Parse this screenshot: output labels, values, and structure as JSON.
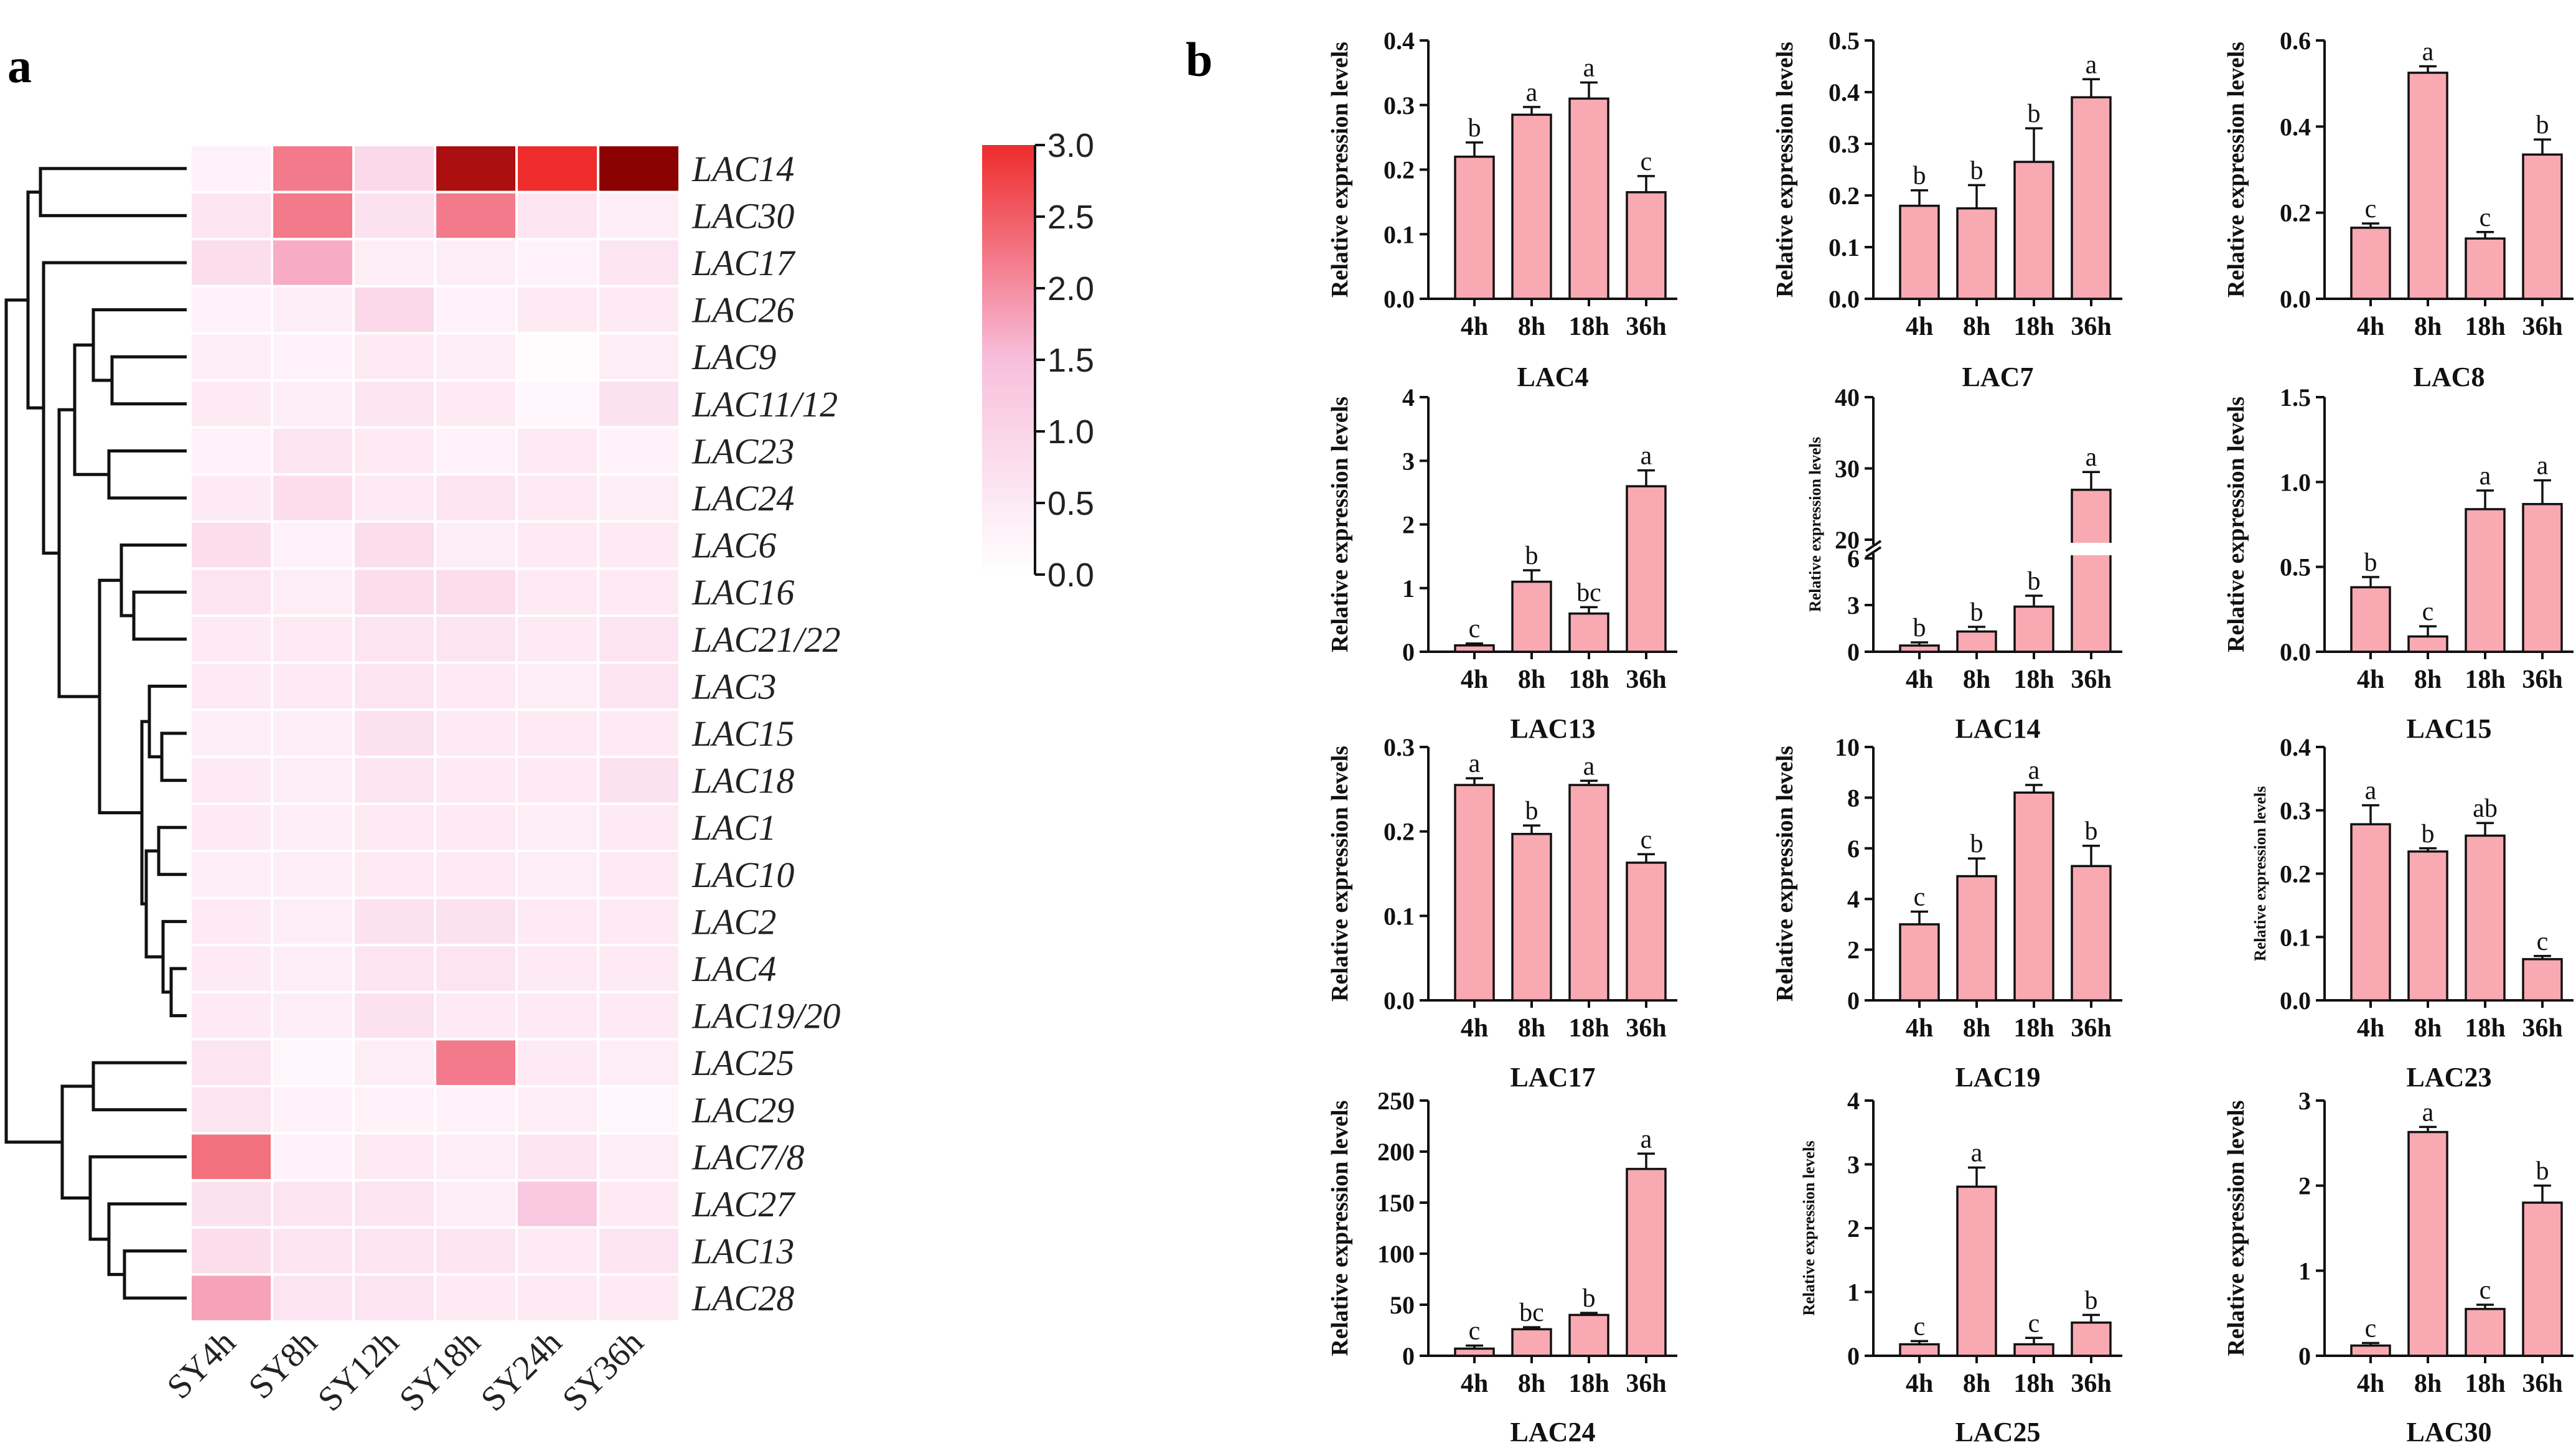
{
  "panels": {
    "a": "a",
    "b": "b"
  },
  "heatmap": {
    "genes": [
      "LAC14",
      "LAC30",
      "LAC17",
      "LAC26",
      "LAC9",
      "LAC11/12",
      "LAC23",
      "LAC24",
      "LAC6",
      "LAC16",
      "LAC21/22",
      "LAC3",
      "LAC15",
      "LAC18",
      "LAC1",
      "LAC10",
      "LAC2",
      "LAC4",
      "LAC19/20",
      "LAC25",
      "LAC29",
      "LAC7/8",
      "LAC27",
      "LAC13",
      "LAC28"
    ],
    "columns": [
      "SY4h",
      "SY8h",
      "SY12h",
      "SY18h",
      "SY24h",
      "SY36h"
    ],
    "values": [
      [
        0.3,
        2.2,
        0.9,
        3.2,
        3.0,
        3.3
      ],
      [
        0.6,
        2.2,
        0.7,
        2.2,
        0.6,
        0.4
      ],
      [
        0.8,
        1.7,
        0.4,
        0.4,
        0.3,
        0.6
      ],
      [
        0.3,
        0.4,
        0.9,
        0.3,
        0.5,
        0.5
      ],
      [
        0.4,
        0.3,
        0.5,
        0.4,
        0.1,
        0.4
      ],
      [
        0.5,
        0.4,
        0.6,
        0.5,
        0.2,
        0.7
      ],
      [
        0.3,
        0.6,
        0.5,
        0.3,
        0.5,
        0.3
      ],
      [
        0.5,
        0.8,
        0.5,
        0.6,
        0.5,
        0.4
      ],
      [
        0.8,
        0.3,
        0.8,
        0.4,
        0.5,
        0.5
      ],
      [
        0.6,
        0.4,
        0.8,
        0.8,
        0.5,
        0.5
      ],
      [
        0.5,
        0.5,
        0.6,
        0.6,
        0.5,
        0.6
      ],
      [
        0.5,
        0.5,
        0.6,
        0.5,
        0.4,
        0.6
      ],
      [
        0.4,
        0.4,
        0.7,
        0.5,
        0.5,
        0.5
      ],
      [
        0.5,
        0.4,
        0.6,
        0.5,
        0.5,
        0.7
      ],
      [
        0.5,
        0.4,
        0.5,
        0.5,
        0.4,
        0.5
      ],
      [
        0.4,
        0.4,
        0.5,
        0.5,
        0.4,
        0.5
      ],
      [
        0.5,
        0.4,
        0.7,
        0.7,
        0.5,
        0.5
      ],
      [
        0.5,
        0.4,
        0.6,
        0.6,
        0.5,
        0.5
      ],
      [
        0.5,
        0.4,
        0.7,
        0.5,
        0.5,
        0.5
      ],
      [
        0.6,
        0.2,
        0.4,
        2.2,
        0.5,
        0.4
      ],
      [
        0.6,
        0.3,
        0.3,
        0.3,
        0.4,
        0.2
      ],
      [
        2.3,
        0.3,
        0.5,
        0.4,
        0.6,
        0.4
      ],
      [
        0.7,
        0.6,
        0.6,
        0.4,
        1.3,
        0.5
      ],
      [
        0.8,
        0.6,
        0.6,
        0.6,
        0.5,
        0.6
      ],
      [
        1.8,
        0.6,
        0.6,
        0.5,
        0.5,
        0.5
      ]
    ],
    "colorbar": {
      "min": 0.0,
      "max": 3.0,
      "ticks": [
        "3.0",
        "2.5",
        "2.0",
        "1.5",
        "1.0",
        "0.5",
        "0.0"
      ],
      "color_low": "#ffffff",
      "color_mid": "#f8bfdc",
      "color_high": "#ee2c2c",
      "color_max": "#8b0000"
    }
  },
  "chart_data": [
    {
      "type": "bar",
      "title": "LAC4",
      "ylabel": "Relative expression levels",
      "categories": [
        "4h",
        "8h",
        "18h",
        "36h"
      ],
      "values": [
        0.22,
        0.285,
        0.31,
        0.165
      ],
      "errors": [
        0.022,
        0.012,
        0.025,
        0.025
      ],
      "letters": [
        "b",
        "a",
        "a",
        "c"
      ],
      "ylim": [
        0,
        0.4
      ],
      "yticks": [
        "0.0",
        "0.1",
        "0.2",
        "0.3",
        "0.4"
      ]
    },
    {
      "type": "bar",
      "title": "LAC7",
      "ylabel": "Relative expression levels",
      "categories": [
        "4h",
        "8h",
        "18h",
        "36h"
      ],
      "values": [
        0.18,
        0.175,
        0.265,
        0.39
      ],
      "errors": [
        0.03,
        0.045,
        0.065,
        0.035
      ],
      "letters": [
        "b",
        "b",
        "b",
        "a"
      ],
      "ylim": [
        0,
        0.5
      ],
      "yticks": [
        "0.0",
        "0.1",
        "0.2",
        "0.3",
        "0.4",
        "0.5"
      ]
    },
    {
      "type": "bar",
      "title": "LAC8",
      "ylabel": "Relative expression levels",
      "categories": [
        "4h",
        "8h",
        "18h",
        "36h"
      ],
      "values": [
        0.165,
        0.525,
        0.14,
        0.335
      ],
      "errors": [
        0.01,
        0.015,
        0.015,
        0.035
      ],
      "letters": [
        "c",
        "a",
        "c",
        "b"
      ],
      "ylim": [
        0,
        0.6
      ],
      "yticks": [
        "0.0",
        "0.2",
        "0.4",
        "0.6"
      ]
    },
    {
      "type": "bar",
      "title": "LAC13",
      "ylabel": "Relative expression levels",
      "categories": [
        "4h",
        "8h",
        "18h",
        "36h"
      ],
      "values": [
        0.1,
        1.1,
        0.6,
        2.6
      ],
      "errors": [
        0.03,
        0.18,
        0.1,
        0.25
      ],
      "letters": [
        "c",
        "b",
        "bc",
        "a"
      ],
      "ylim": [
        0,
        4
      ],
      "yticks": [
        "0",
        "1",
        "2",
        "3",
        "4"
      ]
    },
    {
      "type": "bar",
      "title": "LAC14",
      "ylabel": "Relative expression levels",
      "categories": [
        "4h",
        "8h",
        "18h",
        "36h"
      ],
      "values": [
        0.4,
        1.3,
        2.9,
        27
      ],
      "errors": [
        0.2,
        0.3,
        0.7,
        2.5
      ],
      "letters": [
        "b",
        "b",
        "b",
        "a"
      ],
      "broken_axis": {
        "lower": [
          0,
          6
        ],
        "upper": [
          20,
          40
        ]
      },
      "yticks_lower": [
        "0",
        "3",
        "6"
      ],
      "yticks_upper": [
        "20",
        "30",
        "40"
      ]
    },
    {
      "type": "bar",
      "title": "LAC15",
      "ylabel": "Relative expression levels",
      "categories": [
        "4h",
        "8h",
        "18h",
        "36h"
      ],
      "values": [
        0.38,
        0.09,
        0.84,
        0.87
      ],
      "errors": [
        0.06,
        0.06,
        0.11,
        0.14
      ],
      "letters": [
        "b",
        "c",
        "a",
        "a"
      ],
      "ylim": [
        0,
        1.5
      ],
      "yticks": [
        "0.0",
        "0.5",
        "1.0",
        "1.5"
      ]
    },
    {
      "type": "bar",
      "title": "LAC17",
      "ylabel": "Relative expression levels",
      "categories": [
        "4h",
        "8h",
        "18h",
        "36h"
      ],
      "values": [
        0.255,
        0.197,
        0.255,
        0.163
      ],
      "errors": [
        0.008,
        0.01,
        0.005,
        0.01
      ],
      "letters": [
        "a",
        "b",
        "a",
        "c"
      ],
      "ylim": [
        0,
        0.3
      ],
      "yticks": [
        "0.0",
        "0.1",
        "0.2",
        "0.3"
      ]
    },
    {
      "type": "bar",
      "title": "LAC19",
      "ylabel": "Relative expression levels",
      "categories": [
        "4h",
        "8h",
        "18h",
        "36h"
      ],
      "values": [
        3.0,
        4.9,
        8.2,
        5.3
      ],
      "errors": [
        0.5,
        0.7,
        0.3,
        0.8
      ],
      "letters": [
        "c",
        "b",
        "a",
        "b"
      ],
      "ylim": [
        0,
        10
      ],
      "yticks": [
        "0",
        "2",
        "4",
        "6",
        "8",
        "10"
      ]
    },
    {
      "type": "bar",
      "title": "LAC23",
      "ylabel": "Relative expression levels",
      "categories": [
        "4h",
        "8h",
        "18h",
        "36h"
      ],
      "values": [
        0.278,
        0.235,
        0.26,
        0.065
      ],
      "errors": [
        0.03,
        0.005,
        0.02,
        0.005
      ],
      "letters": [
        "a",
        "b",
        "ab",
        "c"
      ],
      "ylim": [
        0,
        0.4
      ],
      "yticks": [
        "0.0",
        "0.1",
        "0.2",
        "0.3",
        "0.4"
      ]
    },
    {
      "type": "bar",
      "title": "LAC24",
      "ylabel": "Relative expression levels",
      "categories": [
        "4h",
        "8h",
        "18h",
        "36h"
      ],
      "values": [
        7,
        26,
        40,
        183
      ],
      "errors": [
        3,
        2,
        2,
        15
      ],
      "letters": [
        "c",
        "bc",
        "b",
        "a"
      ],
      "ylim": [
        0,
        250
      ],
      "yticks": [
        "0",
        "50",
        "100",
        "150",
        "200",
        "250"
      ]
    },
    {
      "type": "bar",
      "title": "LAC25",
      "ylabel": "Relative expression levels",
      "categories": [
        "4h",
        "8h",
        "18h",
        "36h"
      ],
      "values": [
        0.18,
        2.65,
        0.18,
        0.52
      ],
      "errors": [
        0.05,
        0.3,
        0.1,
        0.12
      ],
      "letters": [
        "c",
        "a",
        "c",
        "b"
      ],
      "ylim": [
        0,
        4
      ],
      "yticks": [
        "0",
        "1",
        "2",
        "3",
        "4"
      ]
    },
    {
      "type": "bar",
      "title": "LAC30",
      "ylabel": "Relative expression levels",
      "categories": [
        "4h",
        "8h",
        "18h",
        "36h"
      ],
      "values": [
        0.12,
        2.63,
        0.55,
        1.8
      ],
      "errors": [
        0.03,
        0.06,
        0.05,
        0.2
      ],
      "letters": [
        "c",
        "a",
        "c",
        "b"
      ],
      "ylim": [
        0,
        3
      ],
      "yticks": [
        "0",
        "1",
        "2",
        "3"
      ]
    }
  ]
}
